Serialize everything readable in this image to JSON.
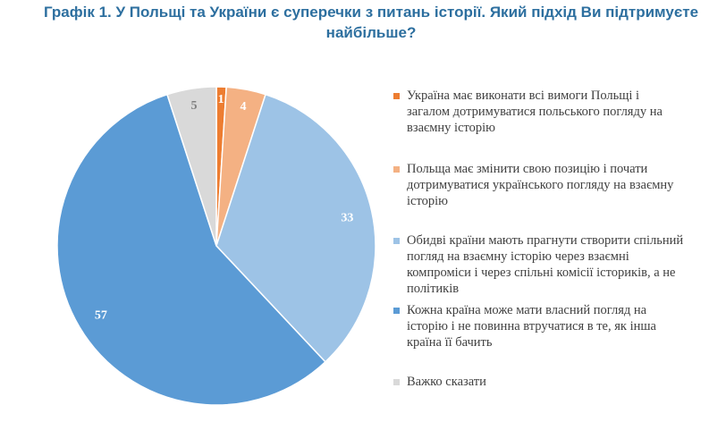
{
  "chart_data": {
    "type": "pie",
    "title_line1": "Графік 1. У Польщі та України є суперечки з питань історії. Який підхід Ви підтримуєте",
    "title_line2": "найбільше?",
    "slices": [
      {
        "label": "Україна має виконати всі вимоги Польщі і загалом дотримуватися польського погляду на взаємну історію",
        "value": 1,
        "color": "#ed7d31"
      },
      {
        "label": "Польща має змінити свою позицію і почати дотримуватися українського погляду на взаємну історію",
        "value": 4,
        "color": "#f4b183"
      },
      {
        "label": "Обидві країни мають прагнути створити спільний погляд на взаємну історію через взаємні компроміси і через спільні комісії істориків, а не політиків",
        "value": 33,
        "color": "#9dc3e6"
      },
      {
        "label": "Кожна країна може мати власний погляд на історію і не повинна втручатися в те, як інша країна її бачить",
        "value": 57,
        "color": "#5b9bd5"
      },
      {
        "label": "Важко сказати",
        "value": 5,
        "color": "#d9d9d9"
      }
    ],
    "legend_position": "right"
  }
}
